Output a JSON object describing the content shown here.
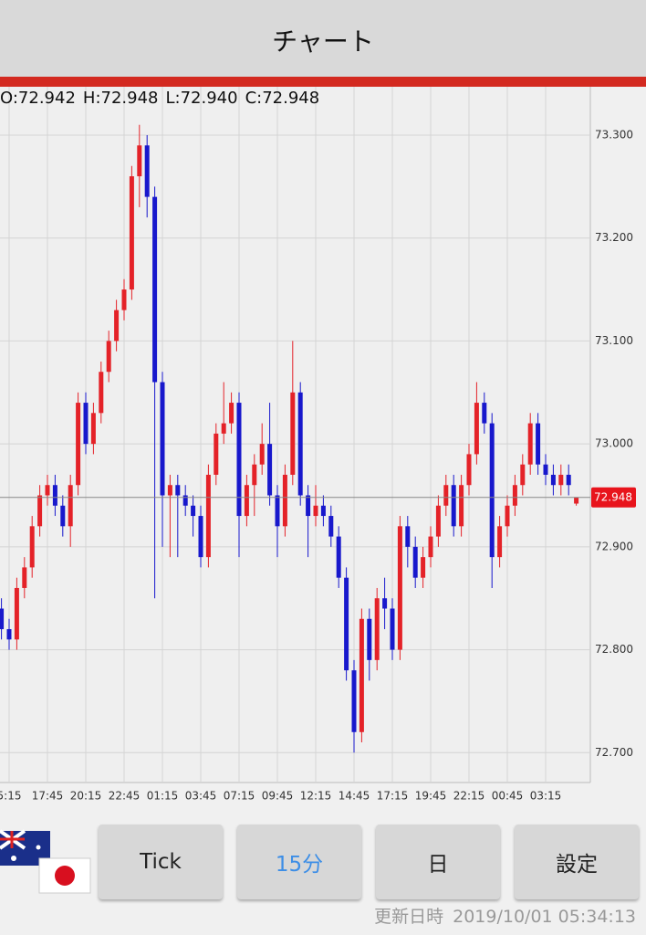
{
  "header": {
    "title": "チャート"
  },
  "chart_data": {
    "type": "candlestick",
    "ohlc_labels": [
      "O:72.942",
      "H:72.948",
      "L:72.940",
      "C:72.948"
    ],
    "open": [
      72.84,
      72.82,
      72.81,
      72.86,
      72.88,
      72.92,
      72.95,
      72.96,
      72.94,
      72.92,
      72.96,
      73.04,
      73.0,
      73.03,
      73.07,
      73.1,
      73.13,
      73.15,
      73.26,
      73.29,
      73.24,
      73.06,
      72.95,
      72.96,
      72.95,
      72.94,
      72.93,
      72.89,
      72.97,
      73.01,
      73.02,
      73.04,
      72.93,
      72.96,
      72.98,
      73.0,
      72.95,
      72.92,
      72.97,
      73.05,
      72.95,
      72.93,
      72.94,
      72.93,
      72.91,
      72.87,
      72.78,
      72.72,
      72.83,
      72.79,
      72.85,
      72.84,
      72.8,
      72.92,
      72.9,
      72.87,
      72.89,
      72.91,
      72.94,
      72.96,
      72.92,
      72.96,
      72.99,
      73.04,
      73.02,
      72.89,
      72.92,
      72.94,
      72.96,
      72.98,
      73.02,
      72.98,
      72.97,
      72.96,
      72.97,
      72.942
    ],
    "high": [
      72.85,
      72.83,
      72.87,
      72.89,
      72.93,
      72.96,
      72.97,
      72.97,
      72.95,
      72.97,
      73.05,
      73.05,
      73.04,
      73.08,
      73.11,
      73.14,
      73.16,
      73.27,
      73.31,
      73.3,
      73.25,
      73.07,
      72.97,
      72.97,
      72.96,
      72.95,
      72.94,
      72.98,
      73.02,
      73.06,
      73.05,
      73.05,
      72.97,
      72.99,
      73.02,
      73.04,
      72.96,
      72.98,
      73.1,
      73.06,
      72.96,
      72.96,
      72.95,
      72.94,
      72.92,
      72.88,
      72.79,
      72.84,
      72.84,
      72.86,
      72.87,
      72.85,
      72.93,
      72.93,
      72.91,
      72.9,
      72.92,
      72.95,
      72.97,
      72.97,
      72.97,
      73.0,
      73.06,
      73.05,
      73.03,
      72.93,
      72.95,
      72.97,
      72.99,
      73.03,
      73.03,
      72.99,
      72.98,
      72.98,
      72.98,
      72.948
    ],
    "low": [
      72.81,
      72.8,
      72.8,
      72.85,
      72.87,
      72.91,
      72.94,
      72.93,
      72.91,
      72.9,
      72.95,
      72.99,
      72.99,
      73.02,
      73.06,
      73.09,
      73.12,
      73.14,
      73.23,
      73.22,
      72.85,
      72.9,
      72.89,
      72.89,
      72.93,
      72.91,
      72.88,
      72.88,
      72.96,
      73.0,
      73.01,
      72.89,
      72.92,
      72.93,
      72.97,
      72.94,
      72.89,
      72.91,
      72.96,
      72.94,
      72.89,
      72.92,
      72.92,
      72.9,
      72.86,
      72.77,
      72.7,
      72.71,
      72.77,
      72.78,
      72.82,
      72.79,
      72.79,
      72.88,
      72.86,
      72.86,
      72.88,
      72.9,
      72.93,
      72.91,
      72.91,
      72.95,
      72.98,
      73.01,
      72.86,
      72.88,
      72.91,
      72.93,
      72.95,
      72.97,
      72.97,
      72.96,
      72.95,
      72.95,
      72.95,
      72.94
    ],
    "close": [
      72.82,
      72.81,
      72.86,
      72.88,
      72.92,
      72.95,
      72.96,
      72.94,
      72.92,
      72.96,
      73.04,
      73.0,
      73.03,
      73.07,
      73.1,
      73.13,
      73.15,
      73.26,
      73.29,
      73.24,
      73.06,
      72.95,
      72.96,
      72.95,
      72.94,
      72.93,
      72.89,
      72.97,
      73.01,
      73.02,
      73.04,
      72.93,
      72.96,
      72.98,
      73.0,
      72.95,
      72.92,
      72.97,
      73.05,
      72.95,
      72.93,
      72.94,
      72.93,
      72.91,
      72.87,
      72.78,
      72.72,
      72.83,
      72.79,
      72.85,
      72.84,
      72.8,
      72.92,
      72.9,
      72.87,
      72.89,
      72.91,
      72.94,
      72.96,
      72.92,
      72.96,
      72.99,
      73.04,
      73.02,
      72.89,
      72.92,
      72.94,
      72.96,
      72.98,
      73.02,
      72.98,
      72.97,
      72.96,
      72.97,
      72.96,
      72.948
    ],
    "up_color": "#e42228",
    "down_color": "#1818cc",
    "ylim": [
      72.671,
      73.347
    ],
    "yticks": [
      {
        "value": 72.7,
        "label": "72.700"
      },
      {
        "value": 72.8,
        "label": "72.800"
      },
      {
        "value": 72.9,
        "label": "72.900"
      },
      {
        "value": 73,
        "label": "73.000"
      },
      {
        "value": 73.1,
        "label": "73.100"
      },
      {
        "value": 73.2,
        "label": "73.200"
      },
      {
        "value": 73.3,
        "label": "73.300"
      }
    ],
    "xticks": [
      {
        "value": 1,
        "label": "5:15"
      },
      {
        "value": 6,
        "label": "17:45"
      },
      {
        "value": 11,
        "label": "20:15"
      },
      {
        "value": 16,
        "label": "22:45"
      },
      {
        "value": 21,
        "label": "01:15"
      },
      {
        "value": 26,
        "label": "03:45"
      },
      {
        "value": 31,
        "label": "07:15"
      },
      {
        "value": 36,
        "label": "09:45"
      },
      {
        "value": 41,
        "label": "12:15"
      },
      {
        "value": 46,
        "label": "14:45"
      },
      {
        "value": 51,
        "label": "17:15"
      },
      {
        "value": 56,
        "label": "19:45"
      },
      {
        "value": 61,
        "label": "22:15"
      },
      {
        "value": 66,
        "label": "00:45"
      },
      {
        "value": 71,
        "label": "03:15"
      }
    ],
    "last_price_label": "72.948",
    "grid": true
  },
  "buttons": [
    "Tick",
    "15分",
    "日",
    "設定"
  ],
  "footer": {
    "label": "更新日時",
    "timestamp": "2019/10/01 05:34:13"
  }
}
